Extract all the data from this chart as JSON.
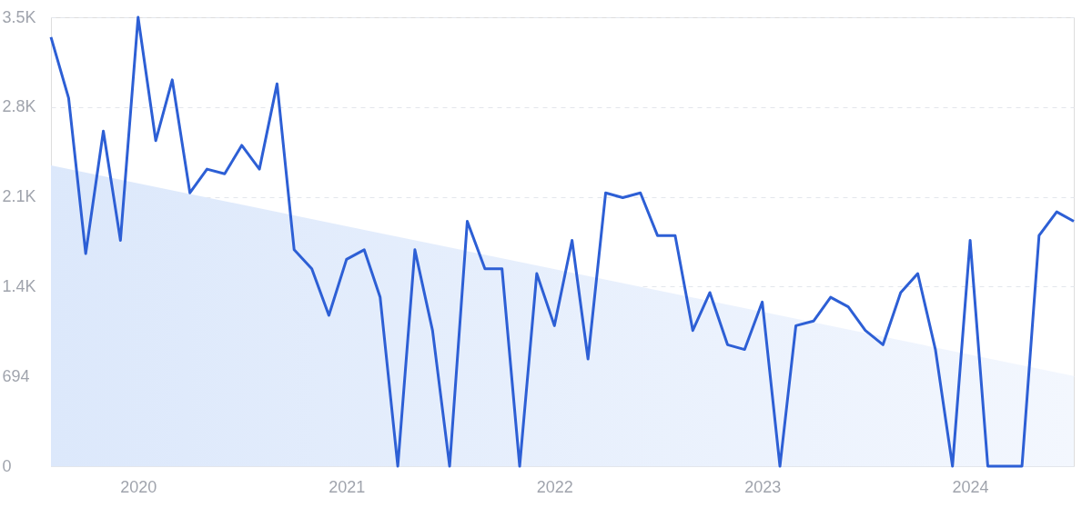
{
  "chart_data": {
    "type": "line",
    "x": [
      "2019-08",
      "2019-09",
      "2019-10",
      "2019-11",
      "2019-12",
      "2020-01",
      "2020-02",
      "2020-03",
      "2020-04",
      "2020-05",
      "2020-06",
      "2020-07",
      "2020-08",
      "2020-09",
      "2020-10",
      "2020-11",
      "2020-12",
      "2021-01",
      "2021-02",
      "2021-03",
      "2021-04",
      "2021-05",
      "2021-06",
      "2021-07",
      "2021-08",
      "2021-09",
      "2021-10",
      "2021-11",
      "2021-12",
      "2022-01",
      "2022-02",
      "2022-03",
      "2022-04",
      "2022-05",
      "2022-06",
      "2022-07",
      "2022-08",
      "2022-09",
      "2022-10",
      "2022-11",
      "2022-12",
      "2023-01",
      "2023-02",
      "2023-03",
      "2023-04",
      "2023-05",
      "2023-06",
      "2023-07",
      "2023-08",
      "2023-09",
      "2023-10",
      "2023-11",
      "2023-12",
      "2024-01",
      "2024-02",
      "2024-03",
      "2024-04",
      "2024-05",
      "2024-06",
      "2024-07"
    ],
    "series": [
      {
        "type": "area",
        "color": "#dce8fb",
        "x": [
          "2019-08",
          "2024-07"
        ],
        "values": [
          2325,
          697
        ]
      },
      {
        "color": "#2d5fd5",
        "values": [
          3316,
          2846,
          1643,
          2590,
          1746,
          3470,
          2516,
          2986,
          2113,
          2296,
          2260,
          2480,
          2296,
          2956,
          1673,
          1526,
          1166,
          1599,
          1673,
          1306,
          0,
          1673,
          1049,
          0,
          1893,
          1526,
          1526,
          0,
          1489,
          1086,
          1746,
          829,
          2113,
          2076,
          2113,
          1783,
          1783,
          1049,
          1342,
          939,
          902,
          1269,
          0,
          1086,
          1122,
          1306,
          1232,
          1049,
          939,
          1342,
          1489,
          902,
          0,
          1746,
          0,
          0,
          0,
          1783,
          1966,
          1893
        ]
      }
    ],
    "xlim": [
      "2019-08",
      "2024-07"
    ],
    "xticks": [
      {
        "value": "2020-01",
        "label": "2020"
      },
      {
        "value": "2021-01",
        "label": "2021"
      },
      {
        "value": "2022-01",
        "label": "2022"
      },
      {
        "value": "2023-01",
        "label": "2023"
      },
      {
        "value": "2024-01",
        "label": "2024"
      }
    ],
    "ylim": [
      0,
      3470
    ],
    "yticks": [
      0,
      694,
      {
        "value": 1388,
        "label": "1.4K"
      },
      {
        "value": 2082,
        "label": "2.1K"
      },
      {
        "value": 2776,
        "label": "2.8K"
      },
      {
        "value": 3470,
        "label": "3.5K"
      }
    ],
    "grid": "y",
    "marker": "none",
    "line_style": "solid"
  }
}
